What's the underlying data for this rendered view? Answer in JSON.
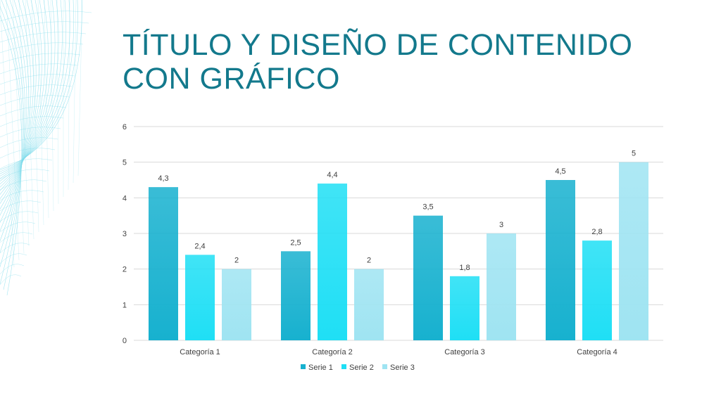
{
  "slide": {
    "title": "Título y diseño de contenido con gráfico"
  },
  "colors": {
    "title": "#13798C",
    "series": [
      "#17B1CF",
      "#1FDFF5",
      "#9FE4F2"
    ],
    "grid": "#D9D9D9",
    "decoration": "#7FDCEB"
  },
  "chart_data": {
    "type": "bar",
    "title": "",
    "xlabel": "",
    "ylabel": "",
    "categories": [
      "Categoría 1",
      "Categoría 2",
      "Categoría 3",
      "Categoría 4"
    ],
    "series": [
      {
        "name": "Serie 1",
        "values": [
          4.3,
          2.5,
          3.5,
          4.5
        ],
        "labels": [
          "4,3",
          "2,5",
          "3,5",
          "4,5"
        ]
      },
      {
        "name": "Serie 2",
        "values": [
          2.4,
          4.4,
          1.8,
          2.8
        ],
        "labels": [
          "2,4",
          "4,4",
          "1,8",
          "2,8"
        ]
      },
      {
        "name": "Serie 3",
        "values": [
          2,
          2,
          3,
          5
        ],
        "labels": [
          "2",
          "2",
          "3",
          "5"
        ]
      }
    ],
    "ylim": [
      0,
      6
    ],
    "yticks": [
      0,
      1,
      2,
      3,
      4,
      5,
      6
    ],
    "grid": true,
    "legend": "bottom"
  }
}
